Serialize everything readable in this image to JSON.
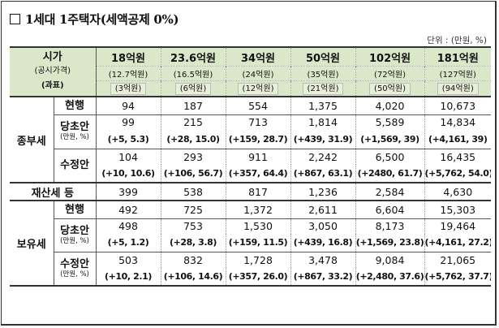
{
  "title": "1세대 1주택자(세액공제 0%)",
  "unit": "단위 : (만원, %)",
  "header": {
    "label_l1": "시가",
    "label_l2": "(공시가격)",
    "label_l3": "(과표)",
    "cols": [
      {
        "price": "18억원",
        "public": "(12.7억원)",
        "base": "(3억원)"
      },
      {
        "price": "23.6억원",
        "public": "(16.5억원)",
        "base": "(6억원)"
      },
      {
        "price": "34억원",
        "public": "(24억원)",
        "base": "(12억원)"
      },
      {
        "price": "50억원",
        "public": "(35억원)",
        "base": "(21억원)"
      },
      {
        "price": "102억원",
        "public": "(72억원)",
        "base": "(50억원)"
      },
      {
        "price": "181억원",
        "public": "(127억원)",
        "base": "(94억원)"
      }
    ]
  },
  "jongbu": {
    "label": "종부세",
    "current": {
      "label": "현행",
      "values": [
        "94",
        "187",
        "554",
        "1,375",
        "4,020",
        "10,673"
      ]
    },
    "original": {
      "label": "당초안",
      "unit": "(만원, %)",
      "values": [
        "99",
        "215",
        "713",
        "1,814",
        "5,589",
        "14,834"
      ],
      "deltas": [
        "(+5, 5.3)",
        "(+28, 15.0)",
        "(+159, 28.7)",
        "(+439, 31.9)",
        "(+1,569, 39)",
        "(+4,161, 39)"
      ]
    },
    "revised": {
      "label": "수정안",
      "values": [
        "104",
        "293",
        "911",
        "2,242",
        "6,500",
        "16,435"
      ],
      "deltas": [
        "(+10, 10.6)",
        "(+106, 56.7)",
        "(+357, 64.4)",
        "(+867, 63.1)",
        "(+2480, 61.7)",
        "(+5,762, 54.0)"
      ]
    }
  },
  "property": {
    "label": "재산세 등",
    "values": [
      "399",
      "538",
      "817",
      "1,236",
      "2,584",
      "4,630"
    ]
  },
  "holding": {
    "label": "보유세",
    "current": {
      "label": "현행",
      "values": [
        "492",
        "725",
        "1,372",
        "2,611",
        "6,604",
        "15,303"
      ]
    },
    "original": {
      "label": "당초안",
      "unit": "(만원, %)",
      "values": [
        "498",
        "753",
        "1,530",
        "3,050",
        "8,173",
        "19,464"
      ],
      "deltas": [
        "(+5, 1.2)",
        "(+28, 3.8)",
        "(+159, 11.5)",
        "(+439, 16.8)",
        "(+1,569, 23.8)",
        "(+4,161, 27.2)"
      ]
    },
    "revised": {
      "label": "수정안",
      "unit": "(만원, %)",
      "values": [
        "503",
        "832",
        "1,728",
        "3,478",
        "9,084",
        "21,065"
      ],
      "deltas": [
        "(+10, 2.1)",
        "(+106, 14.6)",
        "(+357, 26.0)",
        "(+867, 33.2)",
        "(+2,480, 37.6)",
        "(+5,762, 37.7)"
      ]
    }
  }
}
